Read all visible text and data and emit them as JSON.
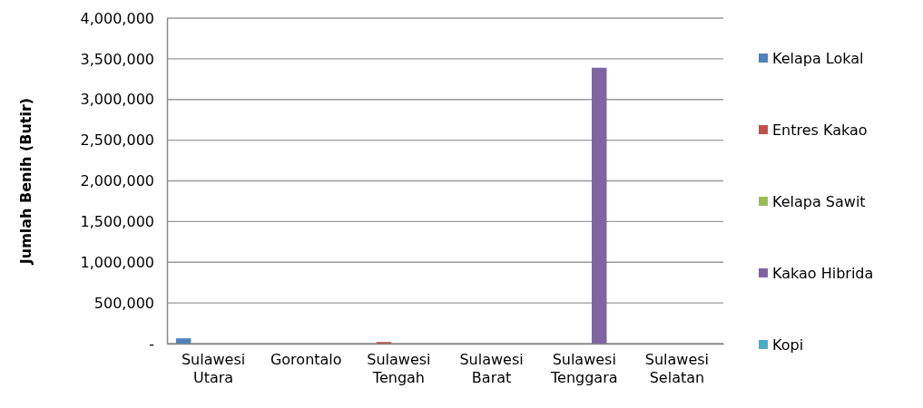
{
  "chart_data": {
    "type": "bar",
    "ylabel": "Jumlah Benih (Butir)",
    "categories": [
      "Sulawesi Utara",
      "Gorontalo",
      "Sulawesi Tengah",
      "Sulawesi Barat",
      "Sulawesi Tenggara",
      "Sulawesi Selatan"
    ],
    "series": [
      {
        "name": "Kelapa Lokal",
        "color": "#4f81bd",
        "values": [
          65000,
          0,
          0,
          0,
          0,
          0
        ]
      },
      {
        "name": "Entres Kakao",
        "color": "#c0504d",
        "values": [
          0,
          0,
          20000,
          0,
          0,
          0
        ]
      },
      {
        "name": "Kelapa Sawit",
        "color": "#9bbb59",
        "values": [
          0,
          0,
          0,
          0,
          0,
          0
        ]
      },
      {
        "name": "Kakao Hibrida",
        "color": "#8064a2",
        "values": [
          0,
          0,
          0,
          0,
          3390000,
          0
        ]
      },
      {
        "name": "Kopi",
        "color": "#4bacc6",
        "values": [
          0,
          0,
          0,
          0,
          0,
          0
        ]
      }
    ],
    "ylim": [
      0,
      4000000
    ],
    "yticks": [
      {
        "value": 0,
        "label": "-"
      },
      {
        "value": 500000,
        "label": "500,000"
      },
      {
        "value": 1000000,
        "label": "1,000,000"
      },
      {
        "value": 1500000,
        "label": "1,500,000"
      },
      {
        "value": 2000000,
        "label": "2,000,000"
      },
      {
        "value": 2500000,
        "label": "2,500,000"
      },
      {
        "value": 3000000,
        "label": "3,000,000"
      },
      {
        "value": 3500000,
        "label": "3,500,000"
      },
      {
        "value": 4000000,
        "label": "4,000,000"
      }
    ],
    "grid": "y",
    "legend": "right"
  }
}
